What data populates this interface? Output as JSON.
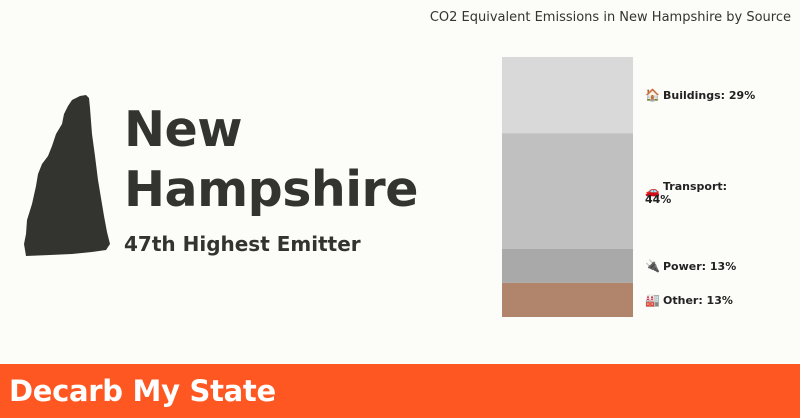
{
  "state": {
    "name": "New Hampshire",
    "rank": "47th Highest Emitter",
    "map_color": "#333330"
  },
  "chart_data": {
    "type": "bar",
    "stacked": true,
    "title": "CO2 Equivalent Emissions in New Hampshire by Source",
    "unit": "%",
    "segments": [
      {
        "icon": "house-icon",
        "glyph": "🏠",
        "label": "Buildings: 29%",
        "value": 29,
        "color": "#d9d9d9"
      },
      {
        "icon": "car-icon",
        "glyph": "🚗",
        "label": "Transport: 44%",
        "value": 44,
        "color": "#c0c0c0"
      },
      {
        "icon": "plug-icon",
        "glyph": "🔌",
        "label": "Power: 13%",
        "value": 13,
        "color": "#a9a9a9"
      },
      {
        "icon": "factory-icon",
        "glyph": "🏭",
        "label": "Other: 13%",
        "value": 13,
        "color": "#b0856b"
      }
    ]
  },
  "footer": {
    "brand": "Decarb My State",
    "color": "#ff5722"
  }
}
